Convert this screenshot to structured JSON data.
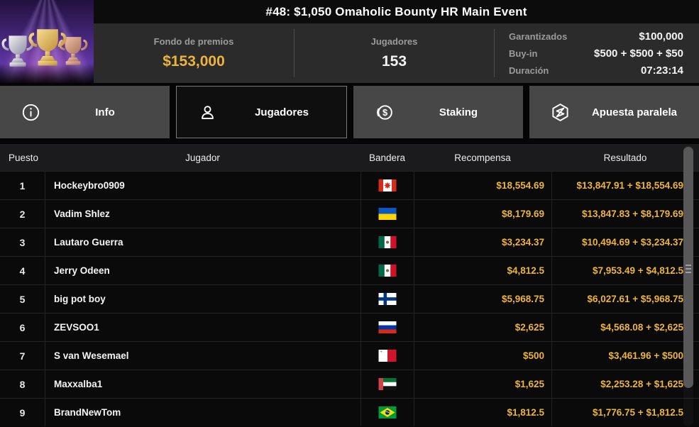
{
  "header": {
    "title": "#48: $1,050 Omaholic Bounty HR Main Event",
    "prize_pool": {
      "label": "Fondo de premios",
      "value": "$153,000"
    },
    "players": {
      "label": "Jugadores",
      "value": "153"
    },
    "details": [
      {
        "label": "Garantizados",
        "value": "$100,000"
      },
      {
        "label": "Buy-in",
        "value": "$500 + $500 + $50"
      },
      {
        "label": "Duración",
        "value": "07:23:14"
      }
    ]
  },
  "tabs": [
    {
      "label": "Info",
      "icon": "info-icon",
      "active": false
    },
    {
      "label": "Jugadores",
      "icon": "players-icon",
      "active": true
    },
    {
      "label": "Staking",
      "icon": "staking-icon",
      "active": false
    },
    {
      "label": "Apuesta paralela",
      "icon": "side-bet-icon",
      "active": false
    }
  ],
  "table": {
    "columns": [
      "Puesto",
      "Jugador",
      "Bandera",
      "Recompensa",
      "Resultado"
    ],
    "rows": [
      {
        "puesto": "1",
        "jugador": "Hockeybro0909",
        "flag": "canada-flag",
        "flag_code": "ca",
        "recompensa": "$18,554.69",
        "resultado": "$13,847.91 + $18,554.69"
      },
      {
        "puesto": "2",
        "jugador": "Vadim Shlez",
        "flag": "ukraine-flag",
        "flag_code": "ua",
        "recompensa": "$8,179.69",
        "resultado": "$13,847.83 + $8,179.69"
      },
      {
        "puesto": "3",
        "jugador": "Lautaro Guerra",
        "flag": "mexico-flag",
        "flag_code": "mx",
        "recompensa": "$3,234.37",
        "resultado": "$10,494.69 + $3,234.37"
      },
      {
        "puesto": "4",
        "jugador": "Jerry Odeen",
        "flag": "mexico-flag",
        "flag_code": "mx",
        "recompensa": "$4,812.5",
        "resultado": "$7,953.49 + $4,812.5"
      },
      {
        "puesto": "5",
        "jugador": "big pot boy",
        "flag": "finland-flag",
        "flag_code": "fi",
        "recompensa": "$5,968.75",
        "resultado": "$6,027.61 + $5,968.75"
      },
      {
        "puesto": "6",
        "jugador": "ZEVSOO1",
        "flag": "russia-flag",
        "flag_code": "ru",
        "recompensa": "$2,625",
        "resultado": "$4,568.08 + $2,625"
      },
      {
        "puesto": "7",
        "jugador": "S van Wesemael",
        "flag": "malta-flag",
        "flag_code": "mt",
        "recompensa": "$500",
        "resultado": "$3,461.96 + $500"
      },
      {
        "puesto": "8",
        "jugador": "Maxxalba1",
        "flag": "uae-flag",
        "flag_code": "ae",
        "recompensa": "$1,625",
        "resultado": "$2,253.28 + $1,625"
      },
      {
        "puesto": "9",
        "jugador": "BrandNewTom",
        "flag": "brazil-flag",
        "flag_code": "br",
        "recompensa": "$1,812.5",
        "resultado": "$1,776.75 + $1,812.5"
      }
    ]
  },
  "colors": {
    "accent_gold": "#edb43c",
    "stats_bg": "#2b2b2b",
    "tab_inactive_bg": "#474747",
    "row_bg": "#0a0a0a",
    "header_row_bg": "#1b1b1d"
  }
}
